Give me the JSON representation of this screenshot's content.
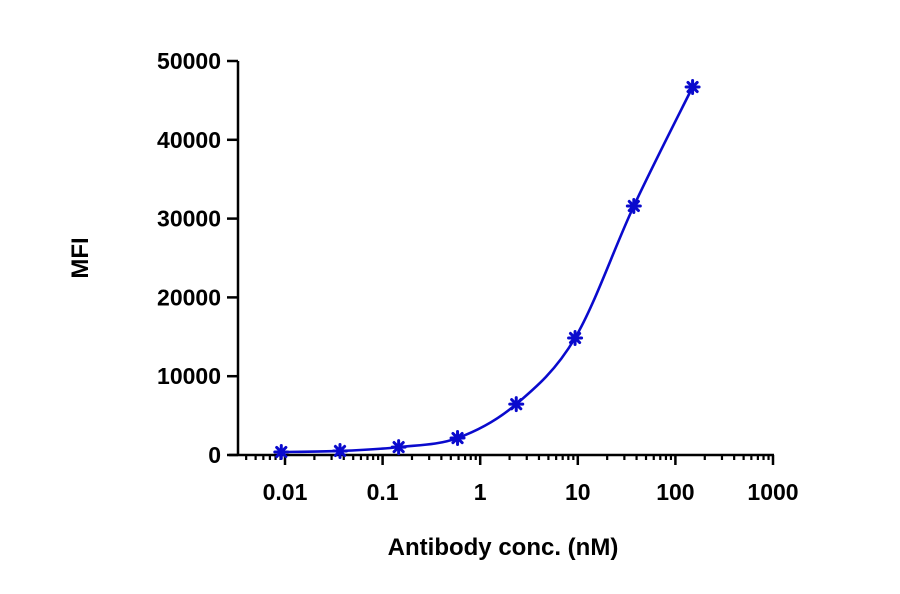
{
  "chart_data": {
    "type": "scatter",
    "title": "",
    "xlabel": "Antibody conc. (nM)",
    "ylabel": "MFI",
    "xscale": "log",
    "xlim": [
      0.0033,
      1000
    ],
    "ylim": [
      0,
      50000
    ],
    "x_ticks": [
      0.01,
      0.1,
      1,
      10,
      100,
      1000
    ],
    "x_tick_labels": [
      "0.01",
      "0.1",
      "1",
      "10",
      "100",
      "1000"
    ],
    "y_ticks": [
      0,
      10000,
      20000,
      30000,
      40000,
      50000
    ],
    "y_tick_labels": [
      "0",
      "10000",
      "20000",
      "30000",
      "40000",
      "50000"
    ],
    "grid": false,
    "legend": null,
    "series": [
      {
        "name": "MFI",
        "color": "#0A0ACD",
        "marker": "asterisk",
        "fit_curve": true,
        "x": [
          0.00916,
          0.0366,
          0.146,
          0.586,
          2.34,
          9.375,
          37.5,
          150
        ],
        "y": [
          380,
          510,
          1000,
          2150,
          6450,
          14850,
          31600,
          46700
        ]
      }
    ]
  }
}
